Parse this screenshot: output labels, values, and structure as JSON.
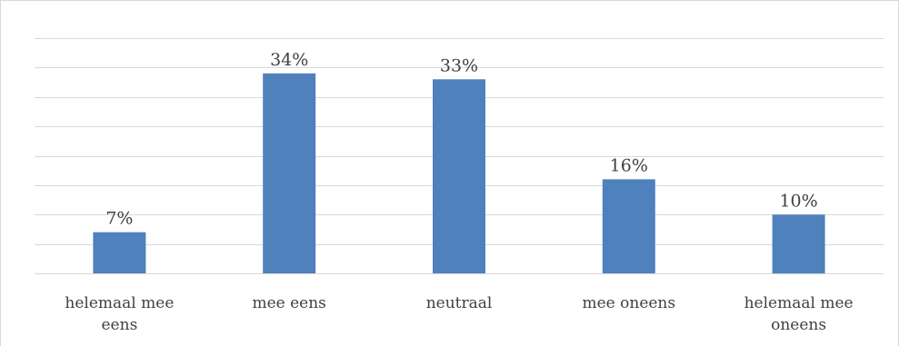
{
  "chart_data": {
    "type": "bar",
    "categories": [
      [
        "helemaal mee",
        "eens"
      ],
      [
        "mee eens"
      ],
      [
        "neutraal"
      ],
      [
        "mee oneens"
      ],
      [
        "helemaal mee",
        "oneens"
      ]
    ],
    "values": [
      7,
      34,
      33,
      16,
      10
    ],
    "data_labels": [
      "7%",
      "34%",
      "33%",
      "16%",
      "10%"
    ],
    "title": "",
    "xlabel": "",
    "ylabel": "",
    "ylim": [
      0,
      40
    ],
    "grid": true,
    "legend": "none",
    "colors": {
      "bar": "#4f81bd",
      "grid": "#d9d9d9",
      "text": "#404040"
    }
  }
}
